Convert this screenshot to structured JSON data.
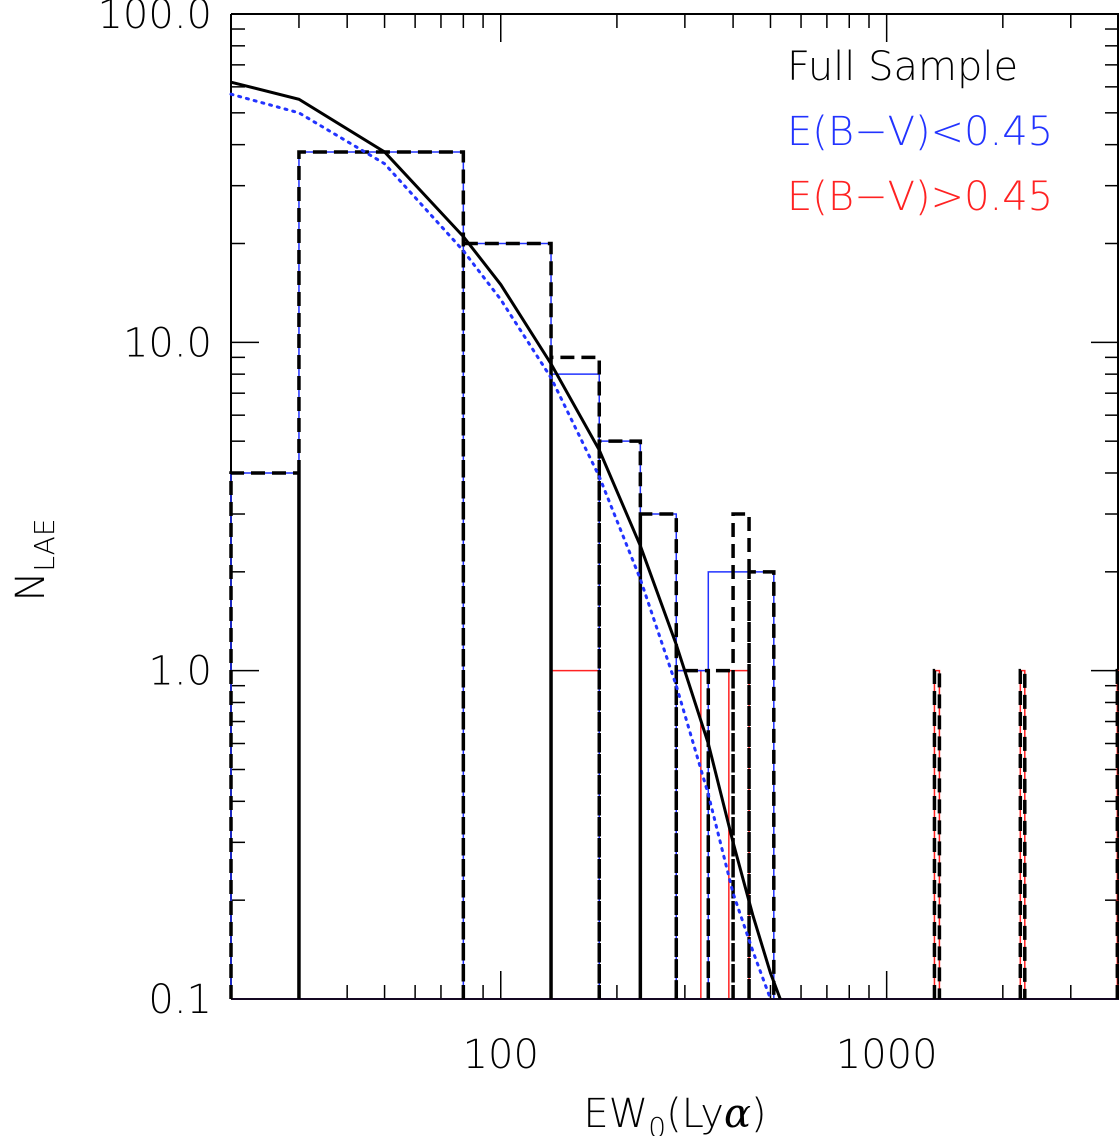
{
  "chart_data": {
    "type": "line",
    "title": "",
    "xlabel": {
      "base": "EW",
      "sub": "0",
      "rest": "(Ly",
      "greek": "α",
      "close": ")"
    },
    "ylabel": {
      "base": "N",
      "sub": "LAE"
    },
    "xscale": "log",
    "yscale": "log",
    "xlim": [
      20,
      4000
    ],
    "ylim": [
      0.1,
      100
    ],
    "x_ticks": [
      {
        "value": 100,
        "label": "100"
      },
      {
        "value": 1000,
        "label": "1000"
      }
    ],
    "y_ticks": [
      {
        "value": 0.1,
        "label": "0.1"
      },
      {
        "value": 1,
        "label": "1.0"
      },
      {
        "value": 10,
        "label": "10.0"
      },
      {
        "value": 100,
        "label": "100.0"
      }
    ],
    "legend_position": "top-right",
    "colors": {
      "full": "#000000",
      "low": "#2233ff",
      "high": "#ff2222"
    },
    "legend": [
      {
        "label": "Full Sample",
        "color": "#000000"
      },
      {
        "label": "E(B−V)<0.45",
        "color": "#2233ff"
      },
      {
        "label": "E(B−V)>0.45",
        "color": "#ff2222"
      }
    ],
    "series": [
      {
        "name": "Full Sample",
        "style": "dashed-step",
        "color": "#000000",
        "bins": [
          [
            20,
            30,
            4
          ],
          [
            30,
            80,
            38
          ],
          [
            80,
            135,
            20
          ],
          [
            135,
            180,
            9
          ],
          [
            180,
            230,
            5
          ],
          [
            230,
            285,
            3
          ],
          [
            285,
            345,
            1
          ],
          [
            345,
            400,
            1
          ],
          [
            400,
            440,
            3
          ],
          [
            440,
            510,
            2
          ],
          [
            1330,
            1370,
            1
          ],
          [
            2220,
            2280,
            1
          ],
          [
            3960,
            4000,
            1
          ]
        ]
      },
      {
        "name": "E(B−V)<0.45",
        "style": "solid-step",
        "color": "#2233ff",
        "bins": [
          [
            20,
            30,
            4
          ],
          [
            30,
            80,
            38
          ],
          [
            80,
            135,
            20
          ],
          [
            135,
            180,
            8
          ],
          [
            180,
            230,
            5
          ],
          [
            230,
            285,
            3
          ],
          [
            285,
            345,
            1
          ],
          [
            345,
            510,
            2
          ]
        ]
      },
      {
        "name": "E(B−V)>0.45",
        "style": "solid-step",
        "color": "#ff2222",
        "bins": [
          [
            135,
            180,
            1
          ],
          [
            285,
            330,
            1
          ],
          [
            390,
            440,
            1
          ],
          [
            1330,
            1370,
            1
          ],
          [
            2220,
            2280,
            1
          ],
          [
            3960,
            4000,
            1
          ]
        ]
      },
      {
        "name": "Fit full sample",
        "style": "solid-curve",
        "color": "#000000",
        "x": [
          20,
          30,
          50,
          80,
          100,
          135,
          180,
          230,
          285,
          345,
          400,
          450,
          500,
          530
        ],
        "y": [
          62,
          55,
          38,
          21,
          15,
          8.6,
          4.7,
          2.4,
          1.2,
          0.6,
          0.3,
          0.18,
          0.12,
          0.1
        ]
      },
      {
        "name": "Fit E(B−V)<0.45",
        "style": "dotted-curve",
        "color": "#2233ff",
        "x": [
          20,
          30,
          50,
          80,
          100,
          135,
          180,
          230,
          285,
          345,
          400,
          450,
          500
        ],
        "y": [
          57,
          50,
          35,
          19,
          13.5,
          7.8,
          3.9,
          1.9,
          0.9,
          0.42,
          0.21,
          0.14,
          0.1
        ]
      }
    ]
  }
}
